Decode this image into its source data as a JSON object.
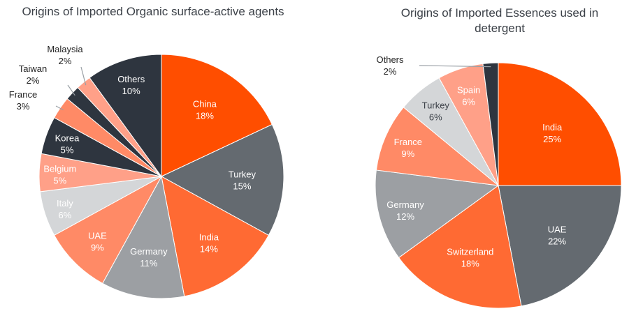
{
  "chart_data": [
    {
      "type": "pie",
      "title": "Origins of Imported Organic surface-active agents",
      "categories": [
        "China",
        "Turkey",
        "India",
        "Germany",
        "UAE",
        "Italy",
        "Belgium",
        "Korea",
        "France",
        "Taiwan",
        "Malaysia",
        "Others"
      ],
      "values": [
        18,
        15,
        14,
        11,
        9,
        6,
        5,
        5,
        3,
        2,
        2,
        10
      ],
      "value_labels": [
        "18%",
        "15%",
        "14%",
        "11%",
        "9%",
        "6%",
        "5%",
        "5%",
        "3%",
        "2%",
        "2%",
        "10%"
      ],
      "colors": [
        "#FF4E00",
        "#646A70",
        "#FF6A33",
        "#9C9FA3",
        "#FF8A66",
        "#D4D6D8",
        "#FFA088",
        "#2E353F",
        "#FF8A66",
        "#2E353F",
        "#FFA088",
        "#2E353F"
      ],
      "start_angle_deg": 0,
      "direction": "clockwise",
      "legend": "none"
    },
    {
      "type": "pie",
      "title": "Origins of Imported Essences used in detergent",
      "categories": [
        "India",
        "UAE",
        "Switzerland",
        "Germany",
        "France",
        "Turkey",
        "Spain",
        "Others"
      ],
      "values": [
        25,
        22,
        18,
        12,
        9,
        6,
        6,
        2
      ],
      "value_labels": [
        "25%",
        "22%",
        "18%",
        "12%",
        "9%",
        "6%",
        "6%",
        "2%"
      ],
      "colors": [
        "#FF4E00",
        "#646A70",
        "#FF6A33",
        "#9C9FA3",
        "#FF8A66",
        "#D4D6D8",
        "#FFA088",
        "#2E353F"
      ],
      "start_angle_deg": 0,
      "direction": "clockwise",
      "legend": "none"
    }
  ]
}
